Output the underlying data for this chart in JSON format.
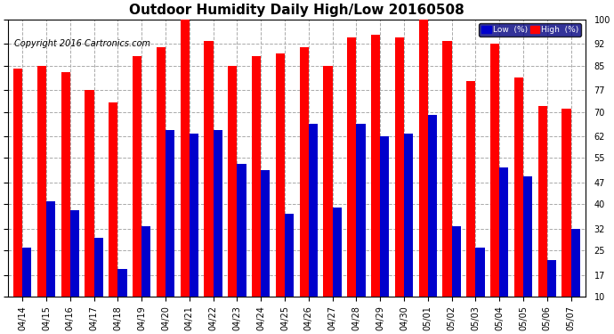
{
  "title": "Outdoor Humidity Daily High/Low 20160508",
  "copyright": "Copyright 2016 Cartronics.com",
  "legend_low": "Low  (%)",
  "legend_high": "High  (%)",
  "categories": [
    "04/14",
    "04/15",
    "04/16",
    "04/17",
    "04/18",
    "04/19",
    "04/20",
    "04/21",
    "04/22",
    "04/23",
    "04/24",
    "04/25",
    "04/26",
    "04/27",
    "04/28",
    "04/29",
    "04/30",
    "05/01",
    "05/02",
    "05/03",
    "05/04",
    "05/05",
    "05/06",
    "05/07"
  ],
  "high_values": [
    84,
    85,
    83,
    77,
    73,
    88,
    91,
    100,
    93,
    85,
    88,
    89,
    91,
    85,
    94,
    95,
    94,
    100,
    93,
    80,
    92,
    81,
    72,
    71
  ],
  "low_values": [
    26,
    41,
    38,
    29,
    19,
    33,
    64,
    63,
    64,
    53,
    51,
    37,
    66,
    39,
    66,
    62,
    63,
    69,
    33,
    26,
    52,
    49,
    22,
    32
  ],
  "ylim": [
    10,
    100
  ],
  "yticks": [
    10,
    17,
    25,
    32,
    40,
    47,
    55,
    62,
    70,
    77,
    85,
    92,
    100
  ],
  "bar_width": 0.38,
  "high_color": "#ff0000",
  "low_color": "#0000cc",
  "bg_color": "#ffffff",
  "grid_color": "#aaaaaa",
  "title_fontsize": 11,
  "tick_fontsize": 7,
  "copyright_fontsize": 7
}
